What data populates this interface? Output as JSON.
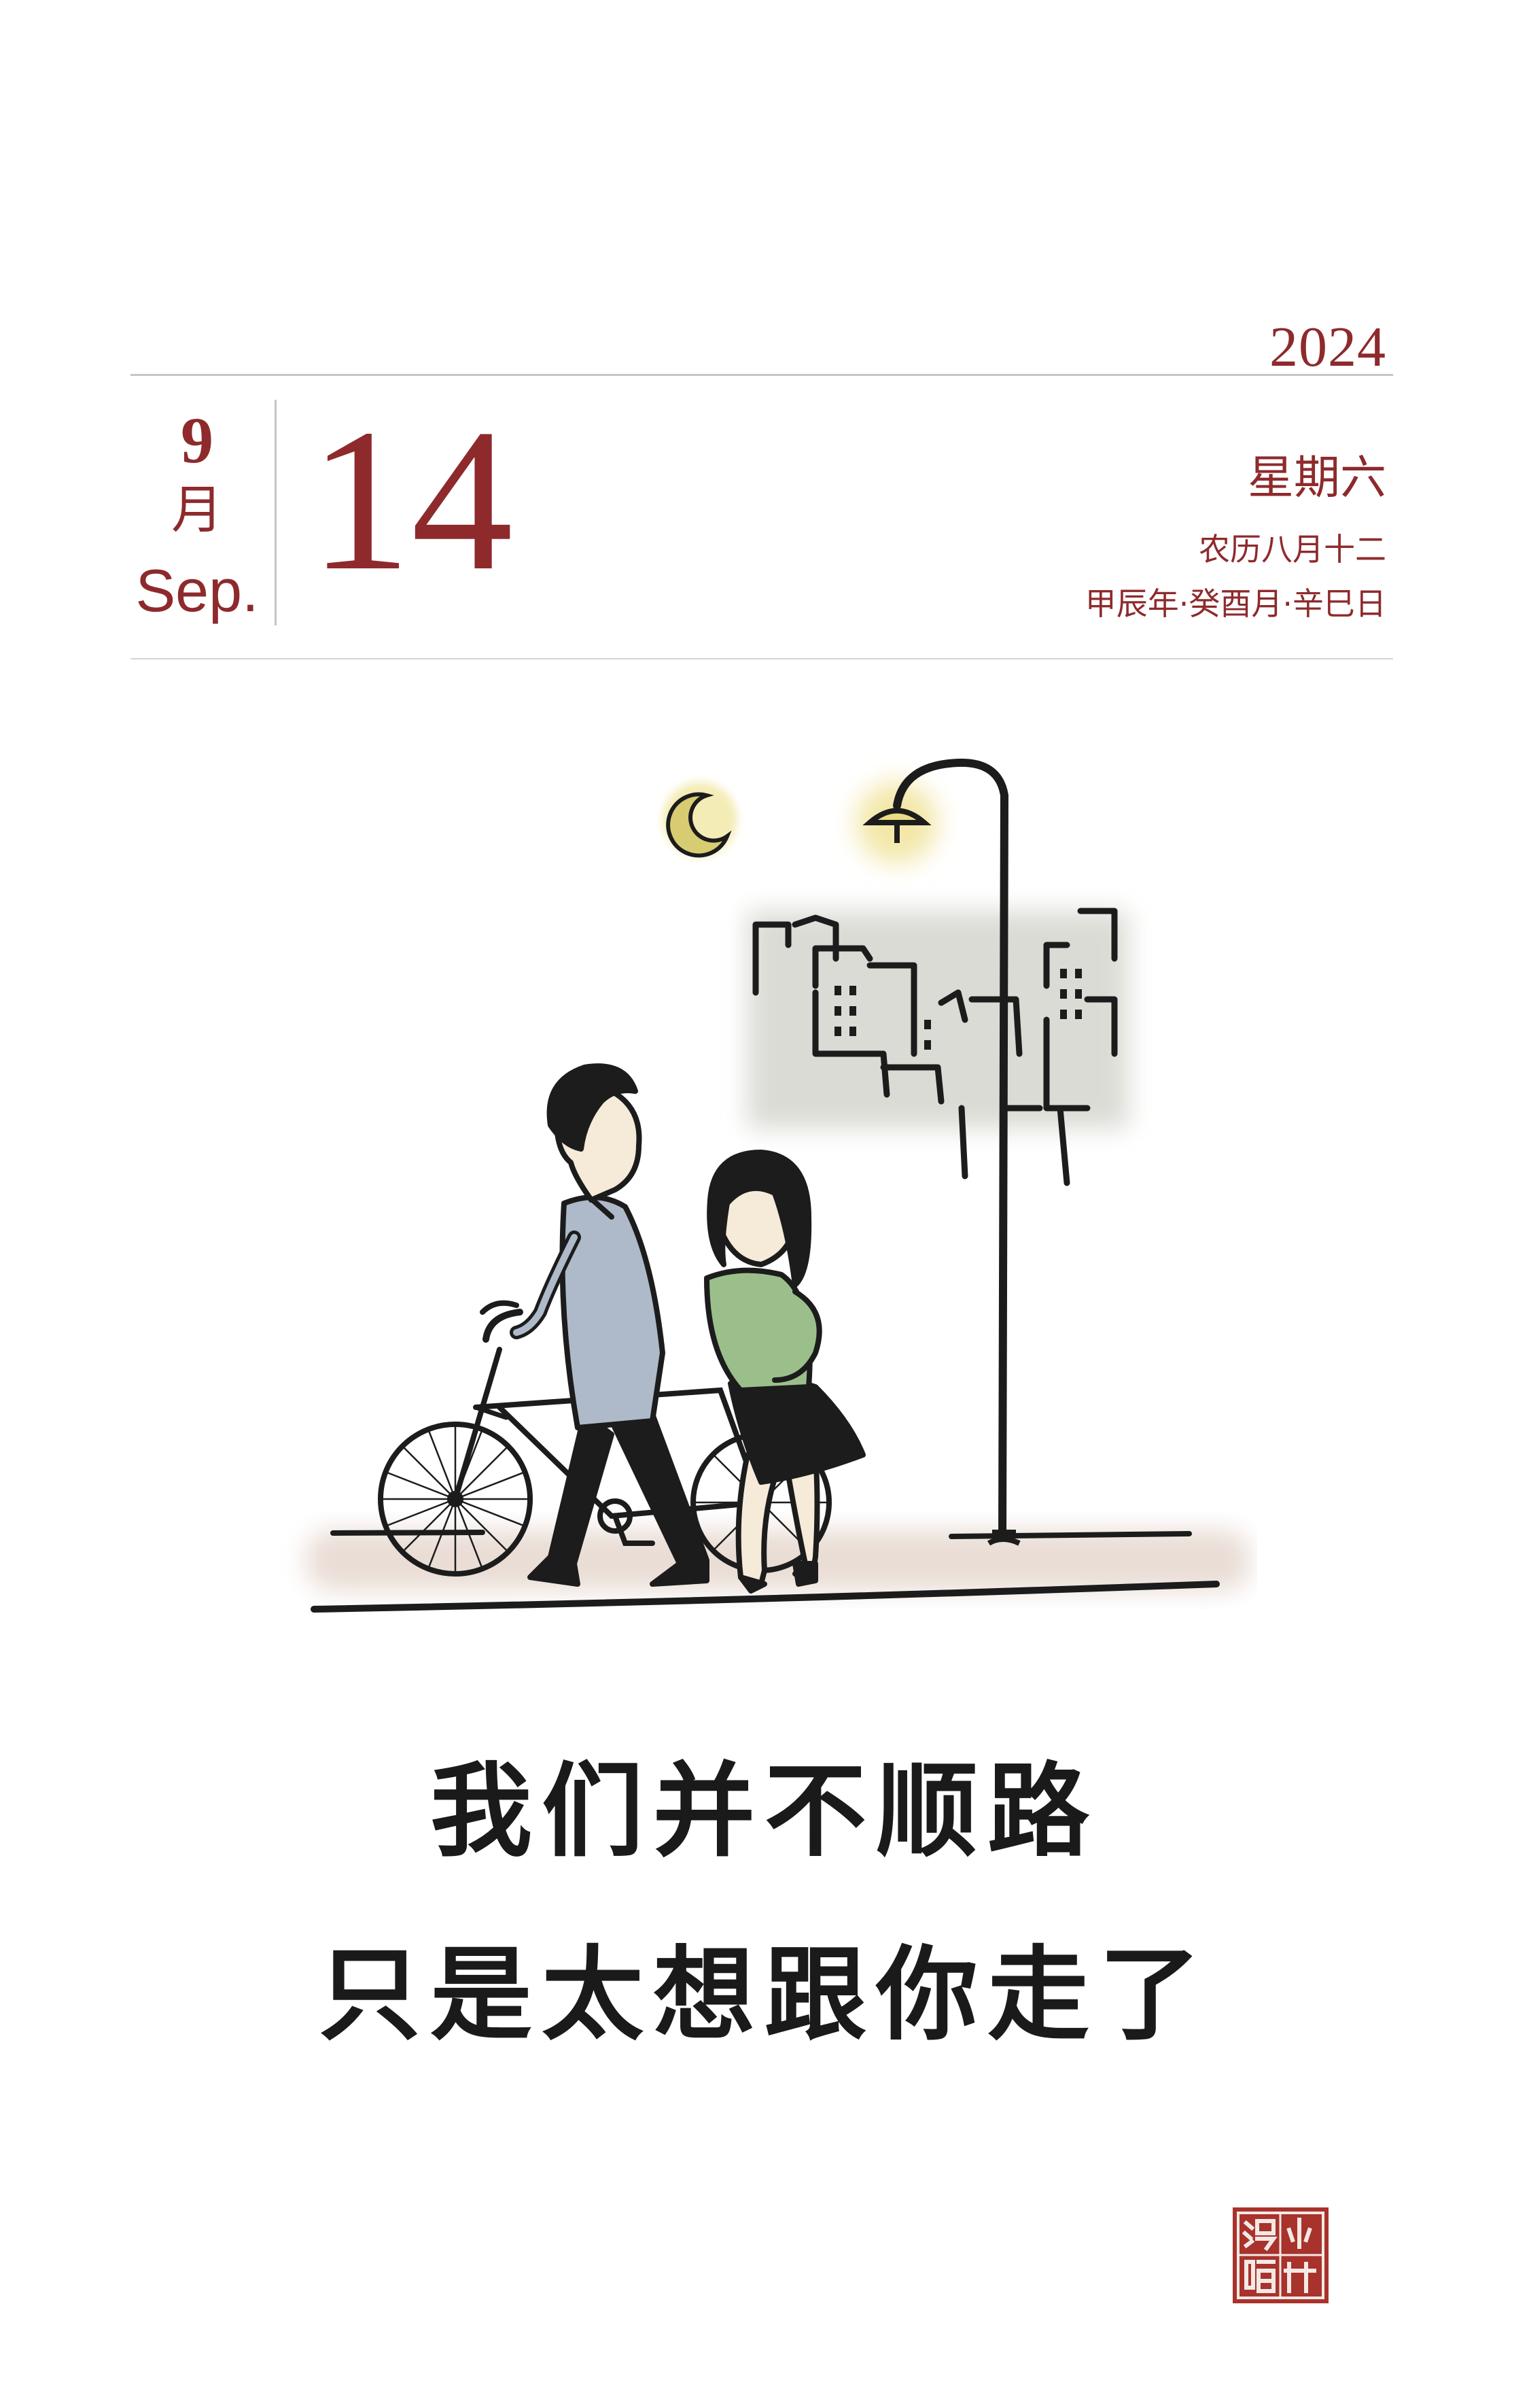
{
  "calendar": {
    "year": "2024",
    "month_number": "9",
    "month_chinese": "月",
    "month_english": "Sep.",
    "day": "14",
    "weekday": "星期六",
    "lunar_date": "农历八月十二",
    "ganzhi": "甲辰年·癸酉月·辛巳日"
  },
  "illustration": {
    "scene": "couple-with-bicycle-under-streetlamp"
  },
  "quote": {
    "line1": "我们并不顺路",
    "line2": "只是太想跟你走了"
  },
  "seal": {
    "text": "小林漫畫",
    "color": "#a8322c"
  },
  "colors": {
    "accent": "#8e2a2c",
    "text": "#1a1a1a",
    "background": "#ffffff"
  }
}
